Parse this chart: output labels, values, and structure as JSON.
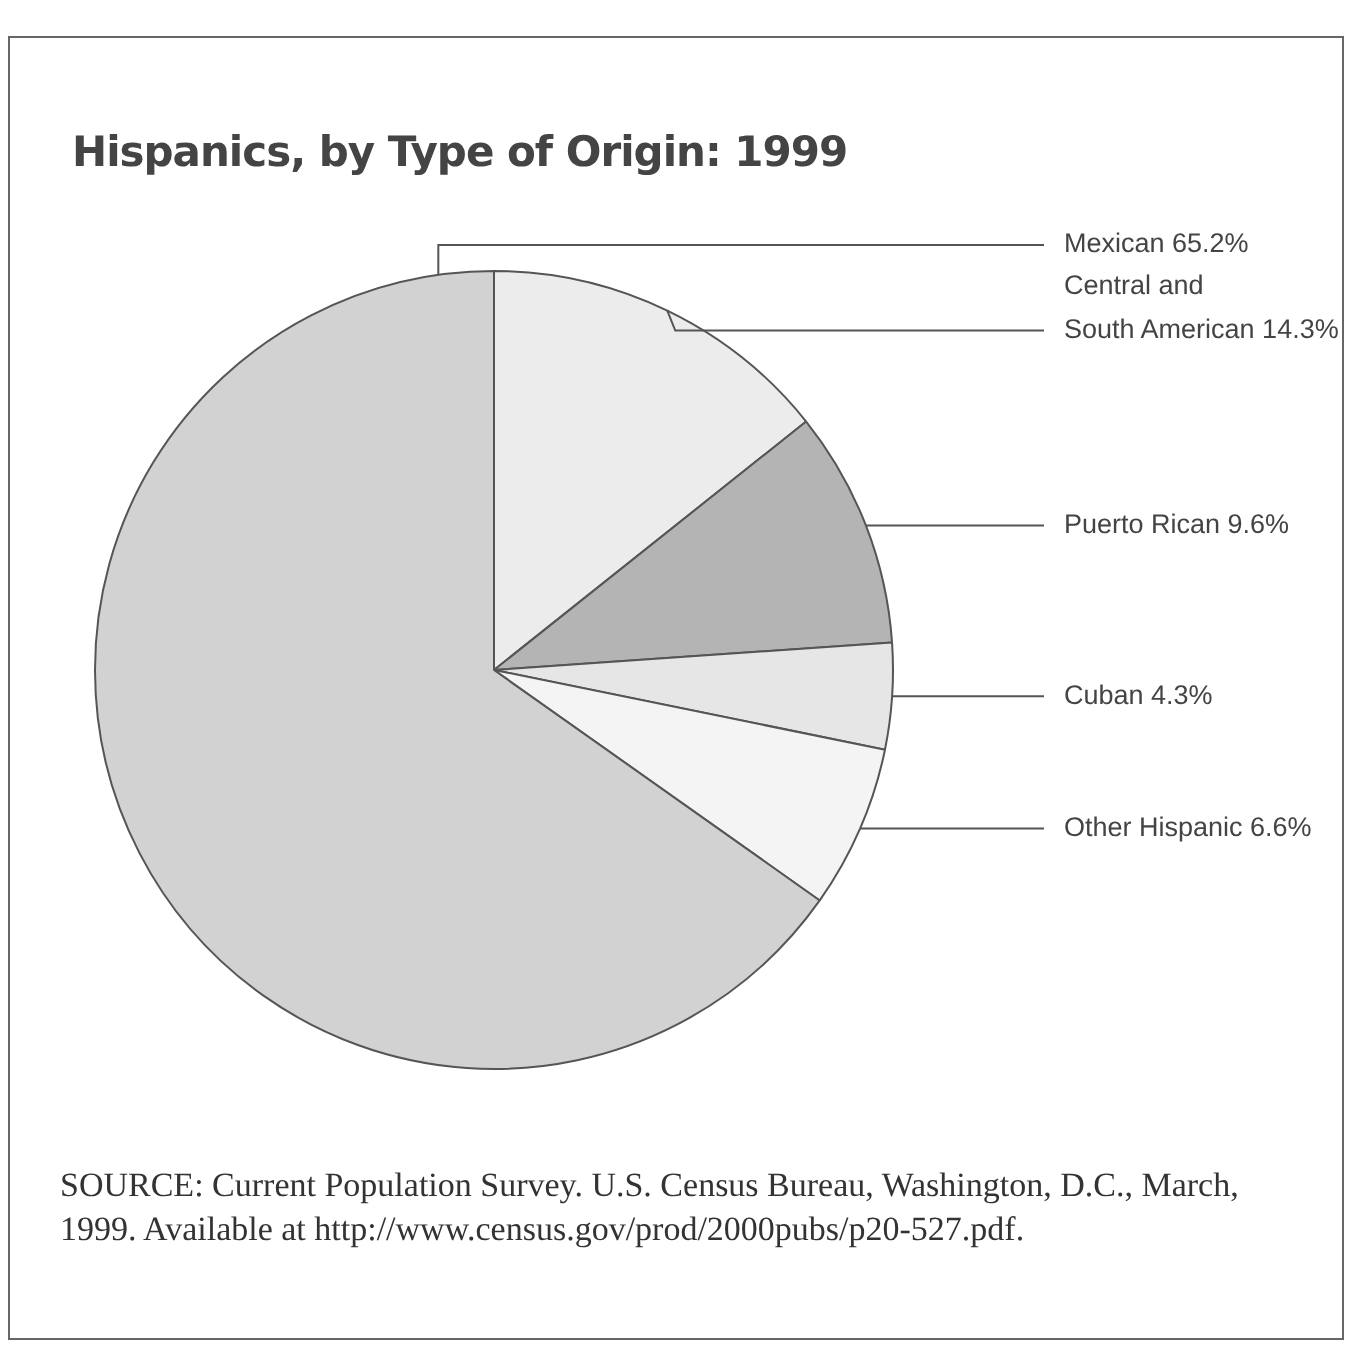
{
  "chart_data": {
    "type": "pie",
    "title": "Hispanics, by Type of Origin: 1999",
    "categories": [
      "Central and South American",
      "Puerto Rican",
      "Cuban",
      "Other Hispanic",
      "Mexican"
    ],
    "values": [
      14.3,
      9.6,
      4.3,
      6.6,
      65.2
    ],
    "colors": [
      "#ececec",
      "#b4b4b4",
      "#e6e6e6",
      "#f4f4f4",
      "#d2d2d2"
    ],
    "value_labels": [
      "14.3%",
      "9.6%",
      "4.3%",
      "6.6%",
      "65.2%"
    ],
    "legend": false,
    "annotations": [
      "SOURCE: Current Population Survey. U.S. Census Bureau, Washington, D.C., March, 1999. Available at http://www.census.gov/prod/2000pubs/p20-527.pdf."
    ]
  }
}
